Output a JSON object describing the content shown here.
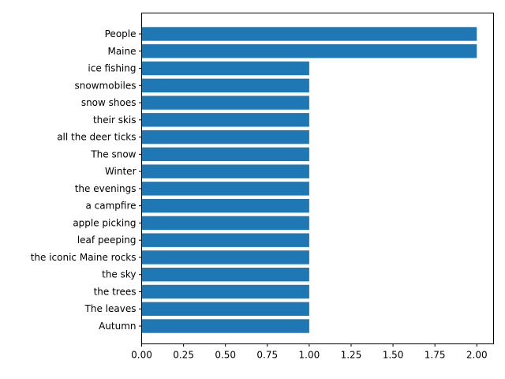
{
  "chart_data": {
    "type": "bar",
    "orientation": "horizontal",
    "categories": [
      "People",
      "Maine",
      "ice fishing",
      "snowmobiles",
      "snow shoes",
      "their skis",
      "all the deer ticks",
      "The snow",
      "Winter",
      "the evenings",
      "a campfire",
      "apple picking",
      "leaf peeping",
      "the iconic Maine rocks",
      "the sky",
      "the trees",
      "The leaves",
      "Autumn"
    ],
    "values": [
      2,
      2,
      1,
      1,
      1,
      1,
      1,
      1,
      1,
      1,
      1,
      1,
      1,
      1,
      1,
      1,
      1,
      1
    ],
    "title": "",
    "xlabel": "",
    "ylabel": "",
    "xlim": [
      0,
      2.1
    ],
    "xticks": [
      "0.00",
      "0.25",
      "0.50",
      "0.75",
      "1.00",
      "1.25",
      "1.50",
      "1.75",
      "2.00"
    ],
    "grid": false,
    "colors": {
      "bar": "#1f77b4",
      "axis": "#000000"
    }
  }
}
